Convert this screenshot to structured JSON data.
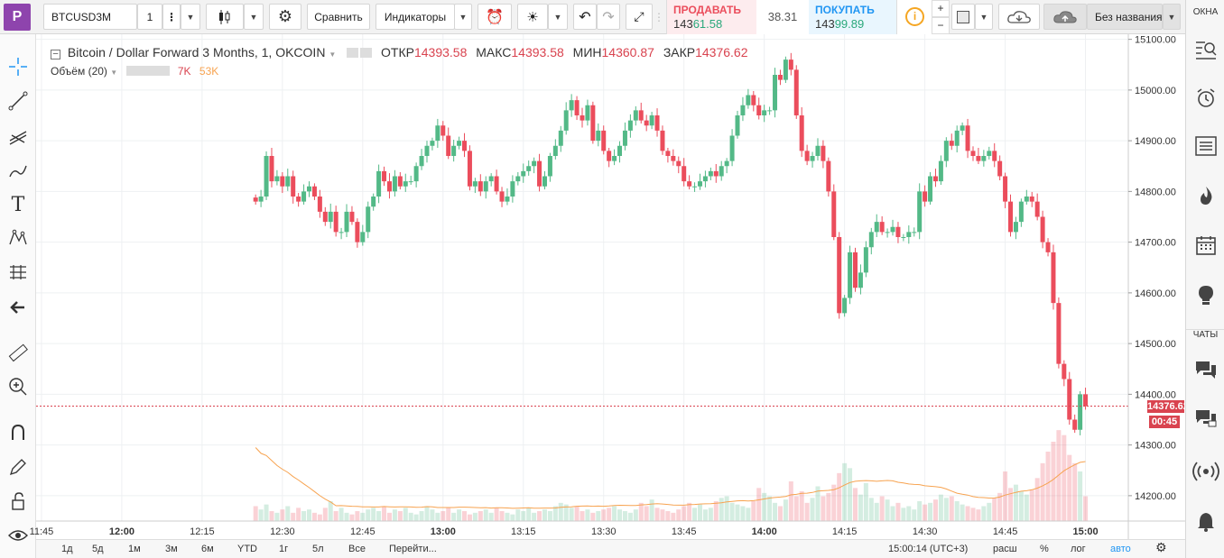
{
  "toolbar": {
    "logo": "P",
    "symbol": "BTCUSD3M",
    "interval": "1",
    "compare_label": "Сравнить",
    "indicators_label": "Индикаторы",
    "sell_label": "ПРОДАВАТЬ",
    "sell_price_prefix": "143",
    "sell_price_big": "61.58",
    "spread": "38.31",
    "buy_label": "ПОКУПАТЬ",
    "buy_price_prefix": "143",
    "buy_price_big": "99.89",
    "layout_name": "Без названия",
    "plus": "+",
    "minus": "−"
  },
  "right_panel": {
    "windows_label": "ОКНА",
    "chats_label": "ЧАТЫ"
  },
  "legend": {
    "title": "Bitcoin / Dollar Forward 3 Months, 1, OKCOIN",
    "open_label": "ОТКР",
    "open": "14393.58",
    "high_label": "МАКС",
    "high": "14393.58",
    "low_label": "МИН",
    "low": "14360.87",
    "close_label": "ЗАКР",
    "close": "14376.62",
    "volume_label": "Объём (20)",
    "vol_value": "7K",
    "vol_ma": "53K"
  },
  "price_badge": {
    "price": "14376.62",
    "countdown": "00:45"
  },
  "bottom": {
    "ranges": [
      "1д",
      "5д",
      "1м",
      "3м",
      "6м",
      "YTD",
      "1г",
      "5л",
      "Все"
    ],
    "goto_label": "Перейти...",
    "time": "15:00:14 (UTC+3)",
    "scale_label": "расш",
    "percent_label": "%",
    "log_label": "лог",
    "auto_label": "авто"
  },
  "colors": {
    "up": "#53b987",
    "down": "#eb4d5c",
    "accent": "#2196f3",
    "ma": "#f7a350"
  },
  "chart_data": {
    "type": "candlestick",
    "title": "Bitcoin / Dollar Forward 3 Months, 1, OKCOIN",
    "y_ticks": [
      "15100.00",
      "15000.00",
      "14900.00",
      "14800.00",
      "14700.00",
      "14600.00",
      "14500.00",
      "14400.00",
      "14300.00",
      "14200.00"
    ],
    "ylim": [
      14150,
      15110
    ],
    "x_ticks": [
      "11:45",
      "12:00",
      "12:15",
      "12:30",
      "12:45",
      "13:00",
      "13:15",
      "13:30",
      "13:45",
      "14:00",
      "14:15",
      "14:30",
      "14:45",
      "15:00"
    ],
    "x_range_minutes": [
      -196,
      8
    ],
    "x_tick_minutes": [
      -195,
      -180,
      -165,
      -150,
      -135,
      -120,
      -105,
      -90,
      -75,
      -60,
      -45,
      -30,
      -15,
      0
    ],
    "current_price": 14376.62,
    "close": [
      14780,
      14790,
      14870,
      14820,
      14830,
      14810,
      14830,
      14790,
      14780,
      14800,
      14810,
      14790,
      14760,
      14740,
      14760,
      14720,
      14720,
      14760,
      14740,
      14700,
      14720,
      14770,
      14790,
      14840,
      14820,
      14800,
      14830,
      14810,
      14820,
      14820,
      14850,
      14870,
      14890,
      14900,
      14930,
      14910,
      14870,
      14890,
      14900,
      14880,
      14810,
      14820,
      14800,
      14820,
      14830,
      14800,
      14780,
      14790,
      14820,
      14830,
      14840,
      14850,
      14860,
      14810,
      14830,
      14870,
      14890,
      14920,
      14960,
      14980,
      14950,
      14940,
      14970,
      14900,
      14920,
      14880,
      14860,
      14870,
      14890,
      14920,
      14940,
      14960,
      14940,
      14930,
      14950,
      14920,
      14880,
      14870,
      14860,
      14850,
      14820,
      14810,
      14810,
      14820,
      14830,
      14840,
      14830,
      14850,
      14860,
      14910,
      14950,
      14970,
      14990,
      14970,
      14950,
      14960,
      14960,
      15030,
      15020,
      15060,
      15040,
      14950,
      14880,
      14860,
      14870,
      14890,
      14860,
      14800,
      14710,
      14560,
      14590,
      14680,
      14610,
      14640,
      14690,
      14720,
      14740,
      14720,
      14720,
      14730,
      14710,
      14710,
      14720,
      14720,
      14800,
      14780,
      14830,
      14820,
      14860,
      14900,
      14890,
      14920,
      14930,
      14880,
      14870,
      14860,
      14870,
      14880,
      14860,
      14830,
      14780,
      14720,
      14740,
      14780,
      14790,
      14780,
      14750,
      14700,
      14680,
      14580,
      14460,
      14430,
      14350,
      14330,
      14400,
      14376.62
    ],
    "volume_scale_max": 120,
    "volume": [
      18,
      14,
      20,
      12,
      10,
      14,
      18,
      10,
      16,
      12,
      14,
      10,
      8,
      16,
      24,
      12,
      16,
      10,
      8,
      12,
      10,
      14,
      16,
      12,
      18,
      10,
      14,
      12,
      16,
      10,
      8,
      12,
      18,
      14,
      10,
      12,
      16,
      10,
      14,
      12,
      8,
      10,
      12,
      14,
      10,
      16,
      12,
      10,
      8,
      14,
      12,
      16,
      10,
      12,
      14,
      12,
      18,
      22,
      20,
      16,
      18,
      12,
      14,
      10,
      12,
      14,
      16,
      18,
      14,
      12,
      10,
      14,
      22,
      18,
      26,
      16,
      14,
      12,
      10,
      14,
      18,
      22,
      16,
      20,
      14,
      16,
      24,
      28,
      30,
      22,
      20,
      18,
      16,
      24,
      40,
      34,
      30,
      22,
      18,
      26,
      48,
      30,
      36,
      22,
      28,
      42,
      30,
      34,
      44,
      58,
      70,
      64,
      40,
      32,
      46,
      28,
      22,
      30,
      26,
      18,
      22,
      16,
      18,
      14,
      24,
      20,
      22,
      26,
      32,
      28,
      30,
      24,
      20,
      18,
      16,
      14,
      18,
      22,
      28,
      34,
      60,
      40,
      44,
      36,
      32,
      38,
      52,
      70,
      84,
      96,
      110,
      104,
      80,
      70,
      60,
      30
    ]
  }
}
